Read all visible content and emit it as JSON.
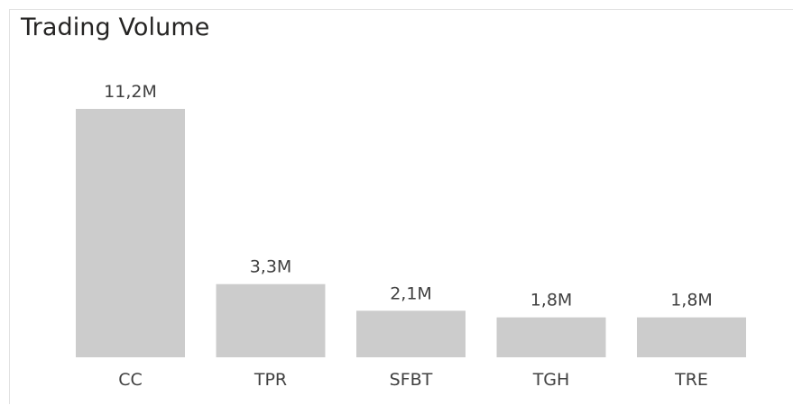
{
  "chart_data": {
    "type": "bar",
    "title": "Trading Volume",
    "categories": [
      "CC",
      "TPR",
      "SFBT",
      "TGH",
      "TRE"
    ],
    "values": [
      11.2,
      3.3,
      2.1,
      1.8,
      1.8
    ],
    "value_unit": "millions",
    "data_labels": [
      "11,2M",
      "3,3M",
      "2,1M",
      "1,8M",
      "1,8M"
    ],
    "xlabel": "",
    "ylabel": "",
    "ylim": [
      0,
      11.2
    ],
    "grid": false,
    "legend": "none",
    "bar_color": "#cccccc"
  }
}
